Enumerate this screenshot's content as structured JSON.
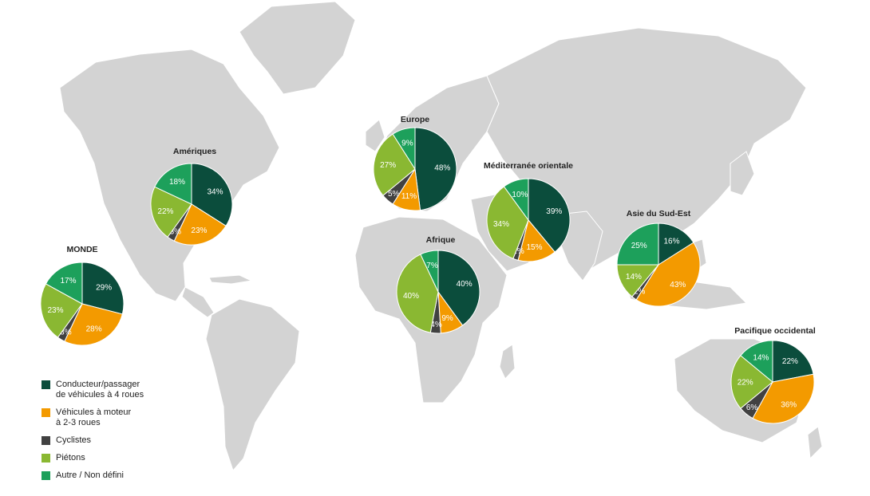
{
  "chart_data": {
    "type": "pie",
    "title": "",
    "colors": [
      "#0b4d3c",
      "#f39a00",
      "#414141",
      "#8ab832",
      "#1da05b"
    ],
    "legend": {
      "placement": "bottom-left",
      "entries": [
        "Conducteur/passager\nde véhicules à 4 roues",
        "Véhicules à moteur\nà 2-3 roues",
        "Cyclistes",
        "Piétons",
        "Autre / Non défini"
      ]
    },
    "pies": [
      {
        "name": "MONDE",
        "values": [
          29,
          28,
          3,
          23,
          17
        ],
        "labels": [
          "29%",
          "28%",
          "3%",
          "23%",
          "17%"
        ]
      },
      {
        "name": "Amériques",
        "values": [
          34,
          23,
          3,
          22,
          18
        ],
        "labels": [
          "34%",
          "23%",
          "3%",
          "22%",
          "18%"
        ]
      },
      {
        "name": "Europe",
        "values": [
          48,
          11,
          5,
          27,
          9
        ],
        "labels": [
          "48%",
          "11%",
          "5%",
          "27%",
          "9%"
        ]
      },
      {
        "name": "Afrique",
        "values": [
          40,
          9,
          4,
          40,
          7
        ],
        "labels": [
          "40%",
          "9%",
          "4%",
          "40%",
          "7%"
        ]
      },
      {
        "name": "Méditerranée orientale",
        "values": [
          39,
          15,
          2,
          34,
          10
        ],
        "labels": [
          "39%",
          "15%",
          "2%",
          "34%",
          "10%"
        ]
      },
      {
        "name": "Asie du Sud-Est",
        "values": [
          16,
          43,
          2,
          14,
          25
        ],
        "labels": [
          "16%",
          "43%",
          "2%",
          "14%",
          "25%"
        ]
      },
      {
        "name": "Pacifique occidental",
        "values": [
          22,
          36,
          6,
          22,
          14
        ],
        "labels": [
          "22%",
          "36%",
          "6%",
          "22%",
          "14%"
        ]
      }
    ]
  }
}
